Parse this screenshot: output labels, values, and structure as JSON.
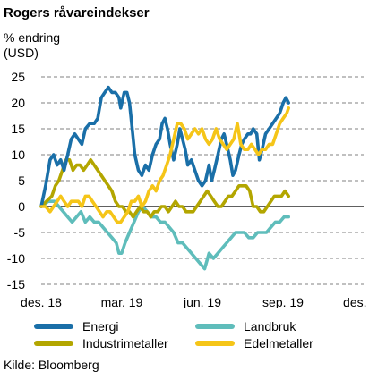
{
  "title": "Rogers råvareindekser",
  "ylabel_line1": "% endring",
  "ylabel_line2": "(USD)",
  "source": "Kilde: Bloomberg",
  "chart_data": {
    "type": "line",
    "ylim": [
      -15,
      25
    ],
    "yticks": [
      25,
      20,
      15,
      10,
      5,
      0,
      -5,
      -10,
      -15
    ],
    "xticks": [
      "des. 18",
      "mar. 19",
      "jun. 19",
      "sep. 19",
      "des. 19"
    ],
    "xlim_days": [
      0,
      365
    ],
    "grid": "horizontal dashed",
    "legend_position": "bottom",
    "series": [
      {
        "name": "Energi",
        "color": "#1a6fa8",
        "points": [
          [
            0,
            0
          ],
          [
            5,
            4
          ],
          [
            10,
            9
          ],
          [
            14,
            10
          ],
          [
            18,
            8
          ],
          [
            22,
            9
          ],
          [
            26,
            7
          ],
          [
            30,
            10
          ],
          [
            34,
            13
          ],
          [
            38,
            14
          ],
          [
            42,
            13
          ],
          [
            46,
            12
          ],
          [
            50,
            15
          ],
          [
            55,
            16
          ],
          [
            60,
            16
          ],
          [
            64,
            17
          ],
          [
            68,
            21
          ],
          [
            72,
            22
          ],
          [
            76,
            23
          ],
          [
            80,
            22
          ],
          [
            84,
            22
          ],
          [
            88,
            21
          ],
          [
            90,
            19
          ],
          [
            94,
            22
          ],
          [
            97,
            22
          ],
          [
            100,
            20
          ],
          [
            103,
            15
          ],
          [
            106,
            10
          ],
          [
            110,
            7
          ],
          [
            114,
            6
          ],
          [
            118,
            8
          ],
          [
            122,
            7
          ],
          [
            126,
            10
          ],
          [
            130,
            12
          ],
          [
            134,
            13
          ],
          [
            137,
            16
          ],
          [
            140,
            17
          ],
          [
            143,
            15
          ],
          [
            146,
            12
          ],
          [
            150,
            9
          ],
          [
            154,
            12
          ],
          [
            157,
            15
          ],
          [
            160,
            13
          ],
          [
            163,
            11
          ],
          [
            166,
            8
          ],
          [
            170,
            9
          ],
          [
            174,
            7
          ],
          [
            178,
            5
          ],
          [
            182,
            4
          ],
          [
            186,
            5
          ],
          [
            190,
            8
          ],
          [
            193,
            5
          ],
          [
            196,
            7
          ],
          [
            200,
            10
          ],
          [
            204,
            13
          ],
          [
            207,
            14
          ],
          [
            210,
            12
          ],
          [
            214,
            9
          ],
          [
            217,
            6
          ],
          [
            220,
            7
          ],
          [
            224,
            10
          ],
          [
            227,
            12
          ],
          [
            230,
            13
          ],
          [
            234,
            14
          ],
          [
            237,
            14
          ],
          [
            240,
            15
          ],
          [
            244,
            14
          ],
          [
            247,
            9
          ],
          [
            250,
            11
          ],
          [
            254,
            14
          ],
          [
            258,
            15
          ],
          [
            262,
            16
          ],
          [
            266,
            17
          ],
          [
            270,
            18
          ],
          [
            274,
            20
          ],
          [
            277,
            21
          ],
          [
            280,
            20
          ]
        ]
      },
      {
        "name": "Landbruk",
        "color": "#5fbdbb",
        "points": [
          [
            0,
            0
          ],
          [
            8,
            1
          ],
          [
            15,
            1
          ],
          [
            20,
            0
          ],
          [
            25,
            -1
          ],
          [
            30,
            -2
          ],
          [
            35,
            -3
          ],
          [
            40,
            -2
          ],
          [
            45,
            -1
          ],
          [
            50,
            -3
          ],
          [
            55,
            -2
          ],
          [
            60,
            -3
          ],
          [
            65,
            -3
          ],
          [
            70,
            -4
          ],
          [
            75,
            -5
          ],
          [
            80,
            -6
          ],
          [
            85,
            -7
          ],
          [
            88,
            -9
          ],
          [
            91,
            -9
          ],
          [
            95,
            -7
          ],
          [
            100,
            -5
          ],
          [
            105,
            -3
          ],
          [
            110,
            -1
          ],
          [
            115,
            0
          ],
          [
            120,
            -1
          ],
          [
            125,
            -2
          ],
          [
            130,
            -2
          ],
          [
            135,
            -3
          ],
          [
            140,
            -3
          ],
          [
            145,
            -4
          ],
          [
            150,
            -5
          ],
          [
            155,
            -7
          ],
          [
            160,
            -7
          ],
          [
            165,
            -8
          ],
          [
            170,
            -9
          ],
          [
            175,
            -10
          ],
          [
            180,
            -11
          ],
          [
            185,
            -12
          ],
          [
            190,
            -9
          ],
          [
            195,
            -10
          ],
          [
            200,
            -9
          ],
          [
            205,
            -8
          ],
          [
            210,
            -7
          ],
          [
            215,
            -6
          ],
          [
            220,
            -5
          ],
          [
            225,
            -5
          ],
          [
            230,
            -5
          ],
          [
            235,
            -6
          ],
          [
            240,
            -6
          ],
          [
            245,
            -5
          ],
          [
            250,
            -5
          ],
          [
            255,
            -5
          ],
          [
            260,
            -4
          ],
          [
            265,
            -3
          ],
          [
            270,
            -3
          ],
          [
            275,
            -2
          ],
          [
            280,
            -2
          ]
        ]
      },
      {
        "name": "Industrimetaller",
        "color": "#b3a600",
        "points": [
          [
            0,
            0
          ],
          [
            6,
            1
          ],
          [
            12,
            2
          ],
          [
            16,
            4
          ],
          [
            20,
            5
          ],
          [
            24,
            7
          ],
          [
            28,
            9
          ],
          [
            32,
            9
          ],
          [
            36,
            7
          ],
          [
            40,
            8
          ],
          [
            44,
            8
          ],
          [
            48,
            7
          ],
          [
            52,
            8
          ],
          [
            56,
            9
          ],
          [
            60,
            8
          ],
          [
            64,
            7
          ],
          [
            68,
            6
          ],
          [
            72,
            5
          ],
          [
            76,
            4
          ],
          [
            80,
            3
          ],
          [
            84,
            1
          ],
          [
            88,
            0
          ],
          [
            92,
            0
          ],
          [
            96,
            -1
          ],
          [
            100,
            -1
          ],
          [
            104,
            -2
          ],
          [
            108,
            -1
          ],
          [
            112,
            0
          ],
          [
            116,
            -1
          ],
          [
            120,
            -1
          ],
          [
            124,
            -2
          ],
          [
            128,
            -1
          ],
          [
            132,
            -1
          ],
          [
            136,
            0
          ],
          [
            140,
            0
          ],
          [
            144,
            -1
          ],
          [
            148,
            0
          ],
          [
            152,
            1
          ],
          [
            156,
            0
          ],
          [
            160,
            0
          ],
          [
            164,
            -1
          ],
          [
            168,
            -1
          ],
          [
            172,
            -1
          ],
          [
            176,
            0
          ],
          [
            180,
            1
          ],
          [
            184,
            2
          ],
          [
            188,
            3
          ],
          [
            192,
            2
          ],
          [
            196,
            1
          ],
          [
            200,
            0
          ],
          [
            204,
            0
          ],
          [
            208,
            1
          ],
          [
            212,
            2
          ],
          [
            216,
            2
          ],
          [
            220,
            3
          ],
          [
            224,
            4
          ],
          [
            228,
            4
          ],
          [
            232,
            4
          ],
          [
            236,
            3
          ],
          [
            240,
            0
          ],
          [
            244,
            0
          ],
          [
            248,
            -1
          ],
          [
            252,
            -1
          ],
          [
            256,
            0
          ],
          [
            260,
            1
          ],
          [
            264,
            2
          ],
          [
            268,
            2
          ],
          [
            272,
            2
          ],
          [
            276,
            3
          ],
          [
            280,
            2
          ]
        ]
      },
      {
        "name": "Edelmetaller",
        "color": "#f5c518",
        "points": [
          [
            0,
            0
          ],
          [
            5,
            0
          ],
          [
            10,
            -1
          ],
          [
            14,
            0
          ],
          [
            18,
            1
          ],
          [
            22,
            2
          ],
          [
            26,
            1
          ],
          [
            30,
            0
          ],
          [
            34,
            1
          ],
          [
            38,
            1
          ],
          [
            42,
            1
          ],
          [
            46,
            0
          ],
          [
            50,
            2
          ],
          [
            54,
            2
          ],
          [
            58,
            1
          ],
          [
            62,
            0
          ],
          [
            66,
            -1
          ],
          [
            70,
            -2
          ],
          [
            74,
            -1
          ],
          [
            78,
            -1
          ],
          [
            82,
            -2
          ],
          [
            86,
            -3
          ],
          [
            90,
            -3
          ],
          [
            94,
            -2
          ],
          [
            98,
            -1
          ],
          [
            102,
            1
          ],
          [
            106,
            1
          ],
          [
            110,
            2
          ],
          [
            114,
            0
          ],
          [
            118,
            1
          ],
          [
            122,
            3
          ],
          [
            126,
            4
          ],
          [
            130,
            3
          ],
          [
            134,
            5
          ],
          [
            138,
            6
          ],
          [
            142,
            8
          ],
          [
            146,
            10
          ],
          [
            150,
            13
          ],
          [
            154,
            16
          ],
          [
            158,
            16
          ],
          [
            162,
            15
          ],
          [
            166,
            13
          ],
          [
            170,
            14
          ],
          [
            174,
            15
          ],
          [
            178,
            14
          ],
          [
            182,
            15
          ],
          [
            186,
            13
          ],
          [
            190,
            12
          ],
          [
            194,
            13
          ],
          [
            198,
            15
          ],
          [
            202,
            13
          ],
          [
            206,
            12
          ],
          [
            210,
            11
          ],
          [
            214,
            12
          ],
          [
            218,
            13
          ],
          [
            222,
            16
          ],
          [
            226,
            12
          ],
          [
            230,
            11
          ],
          [
            234,
            11
          ],
          [
            238,
            12
          ],
          [
            242,
            11
          ],
          [
            246,
            10
          ],
          [
            250,
            11
          ],
          [
            254,
            11
          ],
          [
            258,
            12
          ],
          [
            262,
            12
          ],
          [
            266,
            14
          ],
          [
            270,
            16
          ],
          [
            274,
            17
          ],
          [
            278,
            18
          ],
          [
            280,
            19
          ]
        ]
      }
    ]
  }
}
